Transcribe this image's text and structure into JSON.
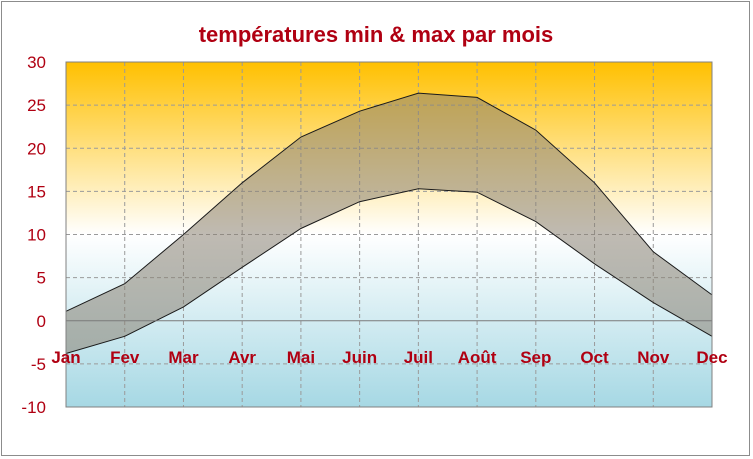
{
  "chart_data": {
    "type": "area",
    "title": "températures min & max par mois",
    "categories": [
      "Jan",
      "Fev",
      "Mar",
      "Avr",
      "Mai",
      "Juin",
      "Juil",
      "Août",
      "Sep",
      "Oct",
      "Nov",
      "Dec"
    ],
    "series": [
      {
        "values": [
          -3.8,
          -1.8,
          1.6,
          6.2,
          10.7,
          13.8,
          15.3,
          14.9,
          11.5,
          6.6,
          2.1,
          -1.8
        ]
      },
      {
        "values": [
          1.1,
          4.3,
          10.0,
          16.0,
          21.3,
          24.3,
          26.4,
          25.9,
          22.1,
          16.0,
          8.0,
          3.0
        ]
      }
    ],
    "ylim": [
      -10,
      30
    ],
    "yticks": [
      30,
      25,
      20,
      15,
      10,
      5,
      0,
      -5,
      -10
    ],
    "grid": true,
    "colors": {
      "title": "#b00012",
      "labels": "#b00012",
      "band_fill": "#8a8272",
      "bg_top": "#ffc000",
      "bg_mid": "#ffffff",
      "bg_bottom": "#a6d8e4"
    }
  }
}
